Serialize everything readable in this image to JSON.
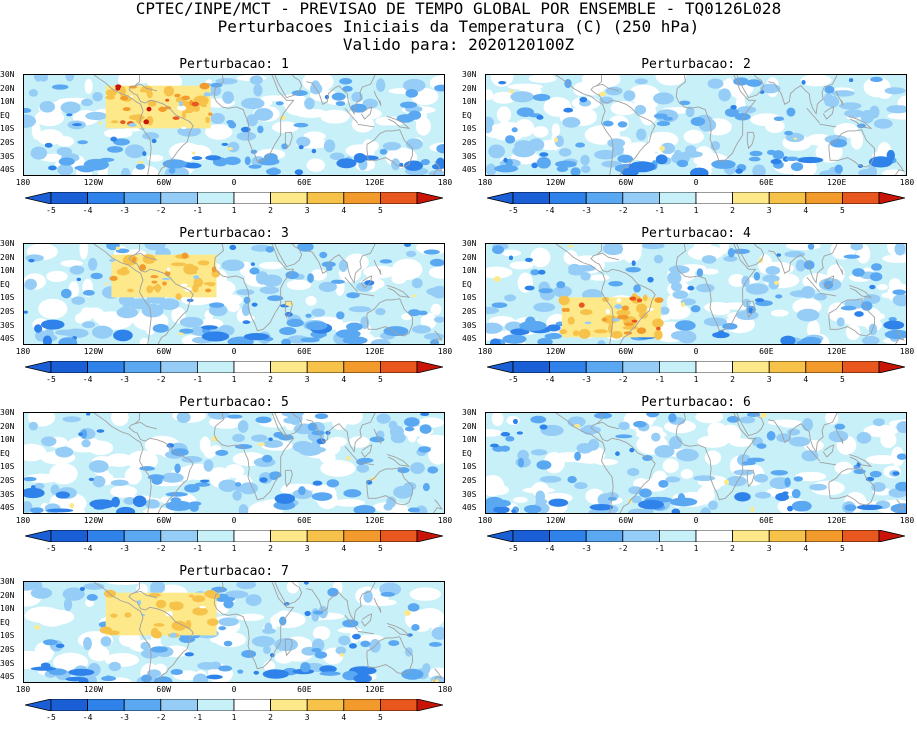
{
  "header": {
    "line1": "CPTEC/INPE/MCT - PREVISAO DE TEMPO GLOBAL POR ENSEMBLE - TQ0126L028",
    "line2": "Perturbacoes Iniciais da Temperatura (C) (250 hPa)",
    "line3": "Valido para: 2020120100Z"
  },
  "colors": {
    "neg5": "#1a5fd6",
    "neg4": "#2f82ea",
    "neg3": "#5aa7f2",
    "neg2": "#96cdf6",
    "neg1": "#c8f0f8",
    "zero": "#ffffff",
    "pos1": "#fde98a",
    "pos2": "#f7c24a",
    "pos3": "#f39a2c",
    "pos4": "#e8581e",
    "pos5": "#c81508",
    "coast": "#a0a0a0"
  },
  "chart_data": {
    "type": "heatmap",
    "variable": "Perturbacoes Iniciais da Temperatura (C) (250 hPa)",
    "lat_ticks": [
      "30N",
      "20N",
      "10N",
      "EQ",
      "10S",
      "20S",
      "30S",
      "40S"
    ],
    "lon_ticks": [
      "180",
      "120W",
      "60W",
      "0",
      "60E",
      "120E",
      "180"
    ],
    "lat_range": [
      -45,
      30
    ],
    "lon_range": [
      -180,
      180
    ],
    "colorbar": {
      "levels": [
        -5,
        -4,
        -3,
        -2,
        -1,
        1,
        2,
        3,
        4,
        5
      ],
      "labels": [
        "-5",
        "-4",
        "-3",
        "-2",
        "-1",
        "1",
        "2",
        "3",
        "4",
        "5"
      ]
    },
    "panels": [
      {
        "title": "Perturbacao: 1",
        "warm_box": {
          "lon": [
            -110,
            -20
          ],
          "lat": [
            -10,
            22
          ],
          "peak": 5
        }
      },
      {
        "title": "Perturbacao: 2",
        "warm_box": null
      },
      {
        "title": "Perturbacao: 3",
        "warm_box": {
          "lon": [
            -105,
            -15
          ],
          "lat": [
            -10,
            22
          ],
          "peak": 3
        }
      },
      {
        "title": "Perturbacao: 4",
        "warm_box": {
          "lon": [
            -115,
            -30
          ],
          "lat": [
            -40,
            -10
          ],
          "peak": 4
        }
      },
      {
        "title": "Perturbacao: 5",
        "warm_box": null
      },
      {
        "title": "Perturbacao: 6",
        "warm_box": null
      },
      {
        "title": "Perturbacao: 7",
        "warm_box": {
          "lon": [
            -110,
            -15
          ],
          "lat": [
            -10,
            22
          ],
          "peak": 2
        }
      }
    ]
  }
}
